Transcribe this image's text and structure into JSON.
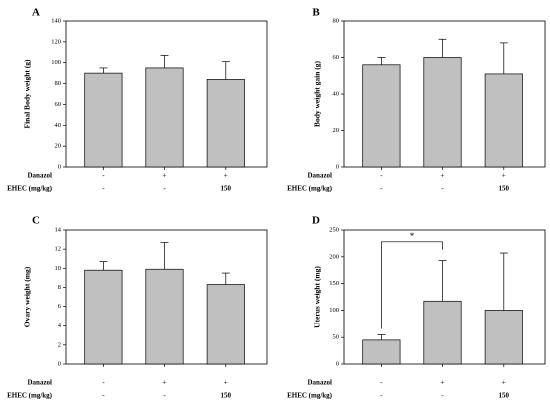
{
  "chart_data": [
    {
      "type": "bar",
      "panel": "A",
      "ylabel": "Final Body weight (g)",
      "ylim": [
        0,
        140
      ],
      "yticks": [
        0,
        20,
        40,
        60,
        80,
        100,
        120,
        140
      ],
      "values": [
        90,
        95,
        84
      ],
      "errors": [
        5,
        12,
        17
      ],
      "conditions": [
        {
          "name": "Danazol",
          "values": [
            "-",
            "+",
            "+"
          ]
        },
        {
          "name": "EHEC (mg/kg)",
          "values": [
            "-",
            "-",
            "150"
          ]
        }
      ]
    },
    {
      "type": "bar",
      "panel": "B",
      "ylabel": "Body weight gain (g)",
      "ylim": [
        0,
        80
      ],
      "yticks": [
        0,
        20,
        40,
        60,
        80
      ],
      "values": [
        56,
        60,
        51
      ],
      "errors": [
        4,
        10,
        17
      ],
      "conditions": [
        {
          "name": "Danazol",
          "values": [
            "-",
            "+",
            "+"
          ]
        },
        {
          "name": "EHEC (mg/kg)",
          "values": [
            "-",
            "-",
            "150"
          ]
        }
      ]
    },
    {
      "type": "bar",
      "panel": "C",
      "ylabel": "Ovary weight (mg)",
      "ylim": [
        0,
        14
      ],
      "yticks": [
        0,
        2,
        4,
        6,
        8,
        10,
        12,
        14
      ],
      "values": [
        9.8,
        9.9,
        8.3
      ],
      "errors": [
        0.9,
        2.8,
        1.2
      ],
      "conditions": [
        {
          "name": "Danazol",
          "values": [
            "-",
            "+",
            "+"
          ]
        },
        {
          "name": "EHEC (mg/kg)",
          "values": [
            "-",
            "-",
            "150"
          ]
        }
      ]
    },
    {
      "type": "bar",
      "panel": "D",
      "ylabel": "Uterus weight (mg)",
      "ylim": [
        0,
        250
      ],
      "yticks": [
        0,
        50,
        100,
        150,
        200,
        250
      ],
      "values": [
        45,
        117,
        100
      ],
      "errors": [
        10,
        76,
        107
      ],
      "significance": {
        "from": 0,
        "to": 1,
        "label": "*"
      },
      "conditions": [
        {
          "name": "Danazol",
          "values": [
            "-",
            "+",
            "+"
          ]
        },
        {
          "name": "EHEC (mg/kg)",
          "values": [
            "-",
            "-",
            "150"
          ]
        }
      ]
    }
  ],
  "colors": {
    "bar_fill": "#c0c0c0",
    "bar_stroke": "#000000",
    "axis": "#000000"
  }
}
